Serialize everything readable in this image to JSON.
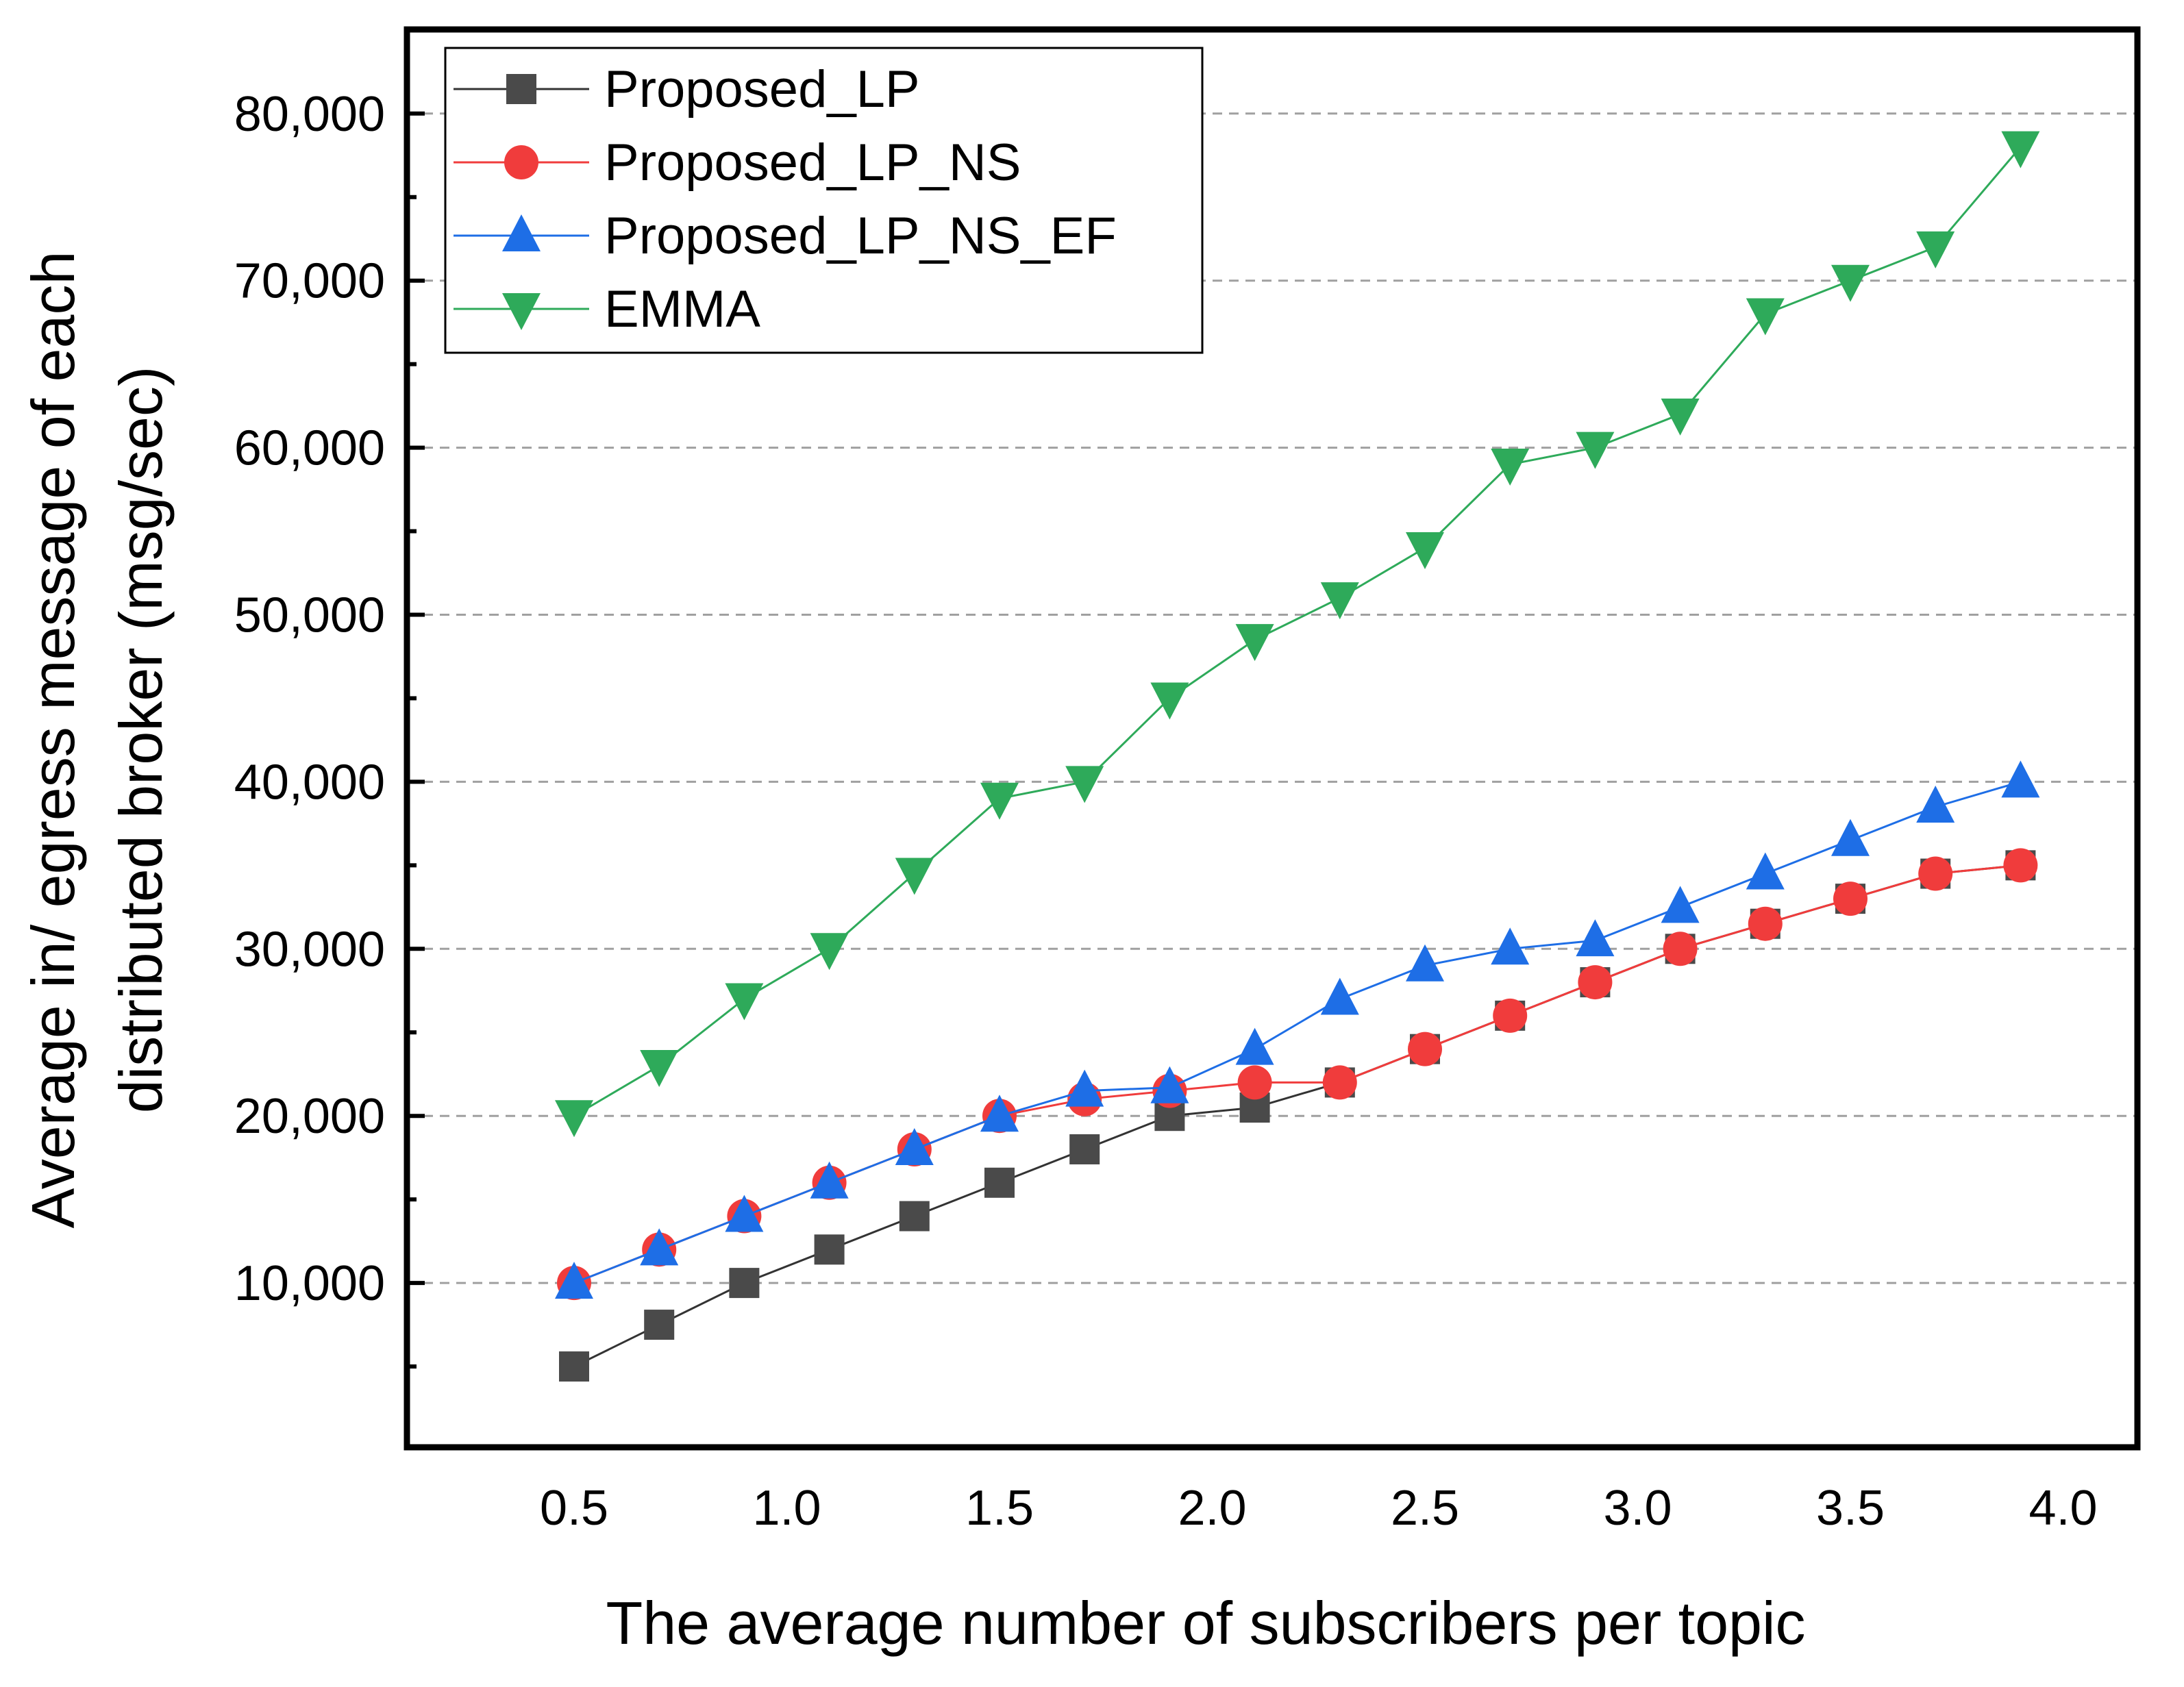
{
  "chart_data": {
    "type": "line",
    "title": "",
    "xlabel": "The average number of subscribers per topic",
    "ylabel_lines": [
      "Average in/ egress message of each",
      "distributed broker (msg/sec)"
    ],
    "xlim": [
      0.2,
      4.2
    ],
    "ylim": [
      0,
      85000
    ],
    "x_ticks": [
      0.5,
      1.0,
      1.5,
      2.0,
      2.5,
      3.0,
      3.5,
      4.0
    ],
    "x_tick_labels": [
      "0.5",
      "1.0",
      "1.5",
      "2.0",
      "2.5",
      "3.0",
      "3.5",
      "4.0"
    ],
    "y_ticks": [
      10000,
      20000,
      30000,
      40000,
      50000,
      60000,
      70000,
      80000
    ],
    "y_tick_labels": [
      "10,000",
      "20,000",
      "30,000",
      "40,000",
      "50,000",
      "60,000",
      "70,000",
      "80,000"
    ],
    "y_minor_ticks": [
      5000,
      15000,
      25000,
      35000,
      45000,
      55000,
      65000,
      75000
    ],
    "grid": "horizontal dashed",
    "legend_position": "top-left",
    "x": [
      0.5,
      0.7,
      0.9,
      1.1,
      1.3,
      1.5,
      1.7,
      1.9,
      2.1,
      2.3,
      2.5,
      2.7,
      2.9,
      3.1,
      3.3,
      3.5,
      3.7,
      3.9
    ],
    "series": [
      {
        "name": "Proposed_LP",
        "marker": "square",
        "color": "#4a4a4a",
        "line_color": "#333333",
        "values": [
          5000,
          7500,
          10000,
          12000,
          14000,
          16000,
          18000,
          20000,
          20500,
          22000,
          24000,
          26000,
          28000,
          30000,
          31500,
          33000,
          34500,
          35000
        ]
      },
      {
        "name": "Proposed_LP_NS",
        "marker": "circle",
        "color": "#f03c3c",
        "line_color": "#f03c3c",
        "values": [
          10000,
          12000,
          14000,
          16000,
          18000,
          20000,
          21000,
          21500,
          22000,
          22000,
          24000,
          26000,
          28000,
          30000,
          31500,
          33000,
          34500,
          35000
        ]
      },
      {
        "name": "Proposed_LP_NS_EF",
        "marker": "triangle-up",
        "color": "#1e6ee6",
        "line_color": "#1e6ee6",
        "values": [
          10000,
          12000,
          14000,
          16000,
          18000,
          20000,
          21500,
          21700,
          24000,
          27000,
          29000,
          30000,
          30500,
          32500,
          34500,
          36500,
          38500,
          40000
        ]
      },
      {
        "name": "EMMA",
        "marker": "triangle-down",
        "color": "#2eaa5a",
        "line_color": "#2eaa5a",
        "values": [
          20000,
          23000,
          27000,
          30000,
          34500,
          39000,
          40000,
          45000,
          48500,
          51000,
          54000,
          59000,
          60000,
          62000,
          68000,
          70000,
          72000,
          78000
        ]
      }
    ]
  }
}
